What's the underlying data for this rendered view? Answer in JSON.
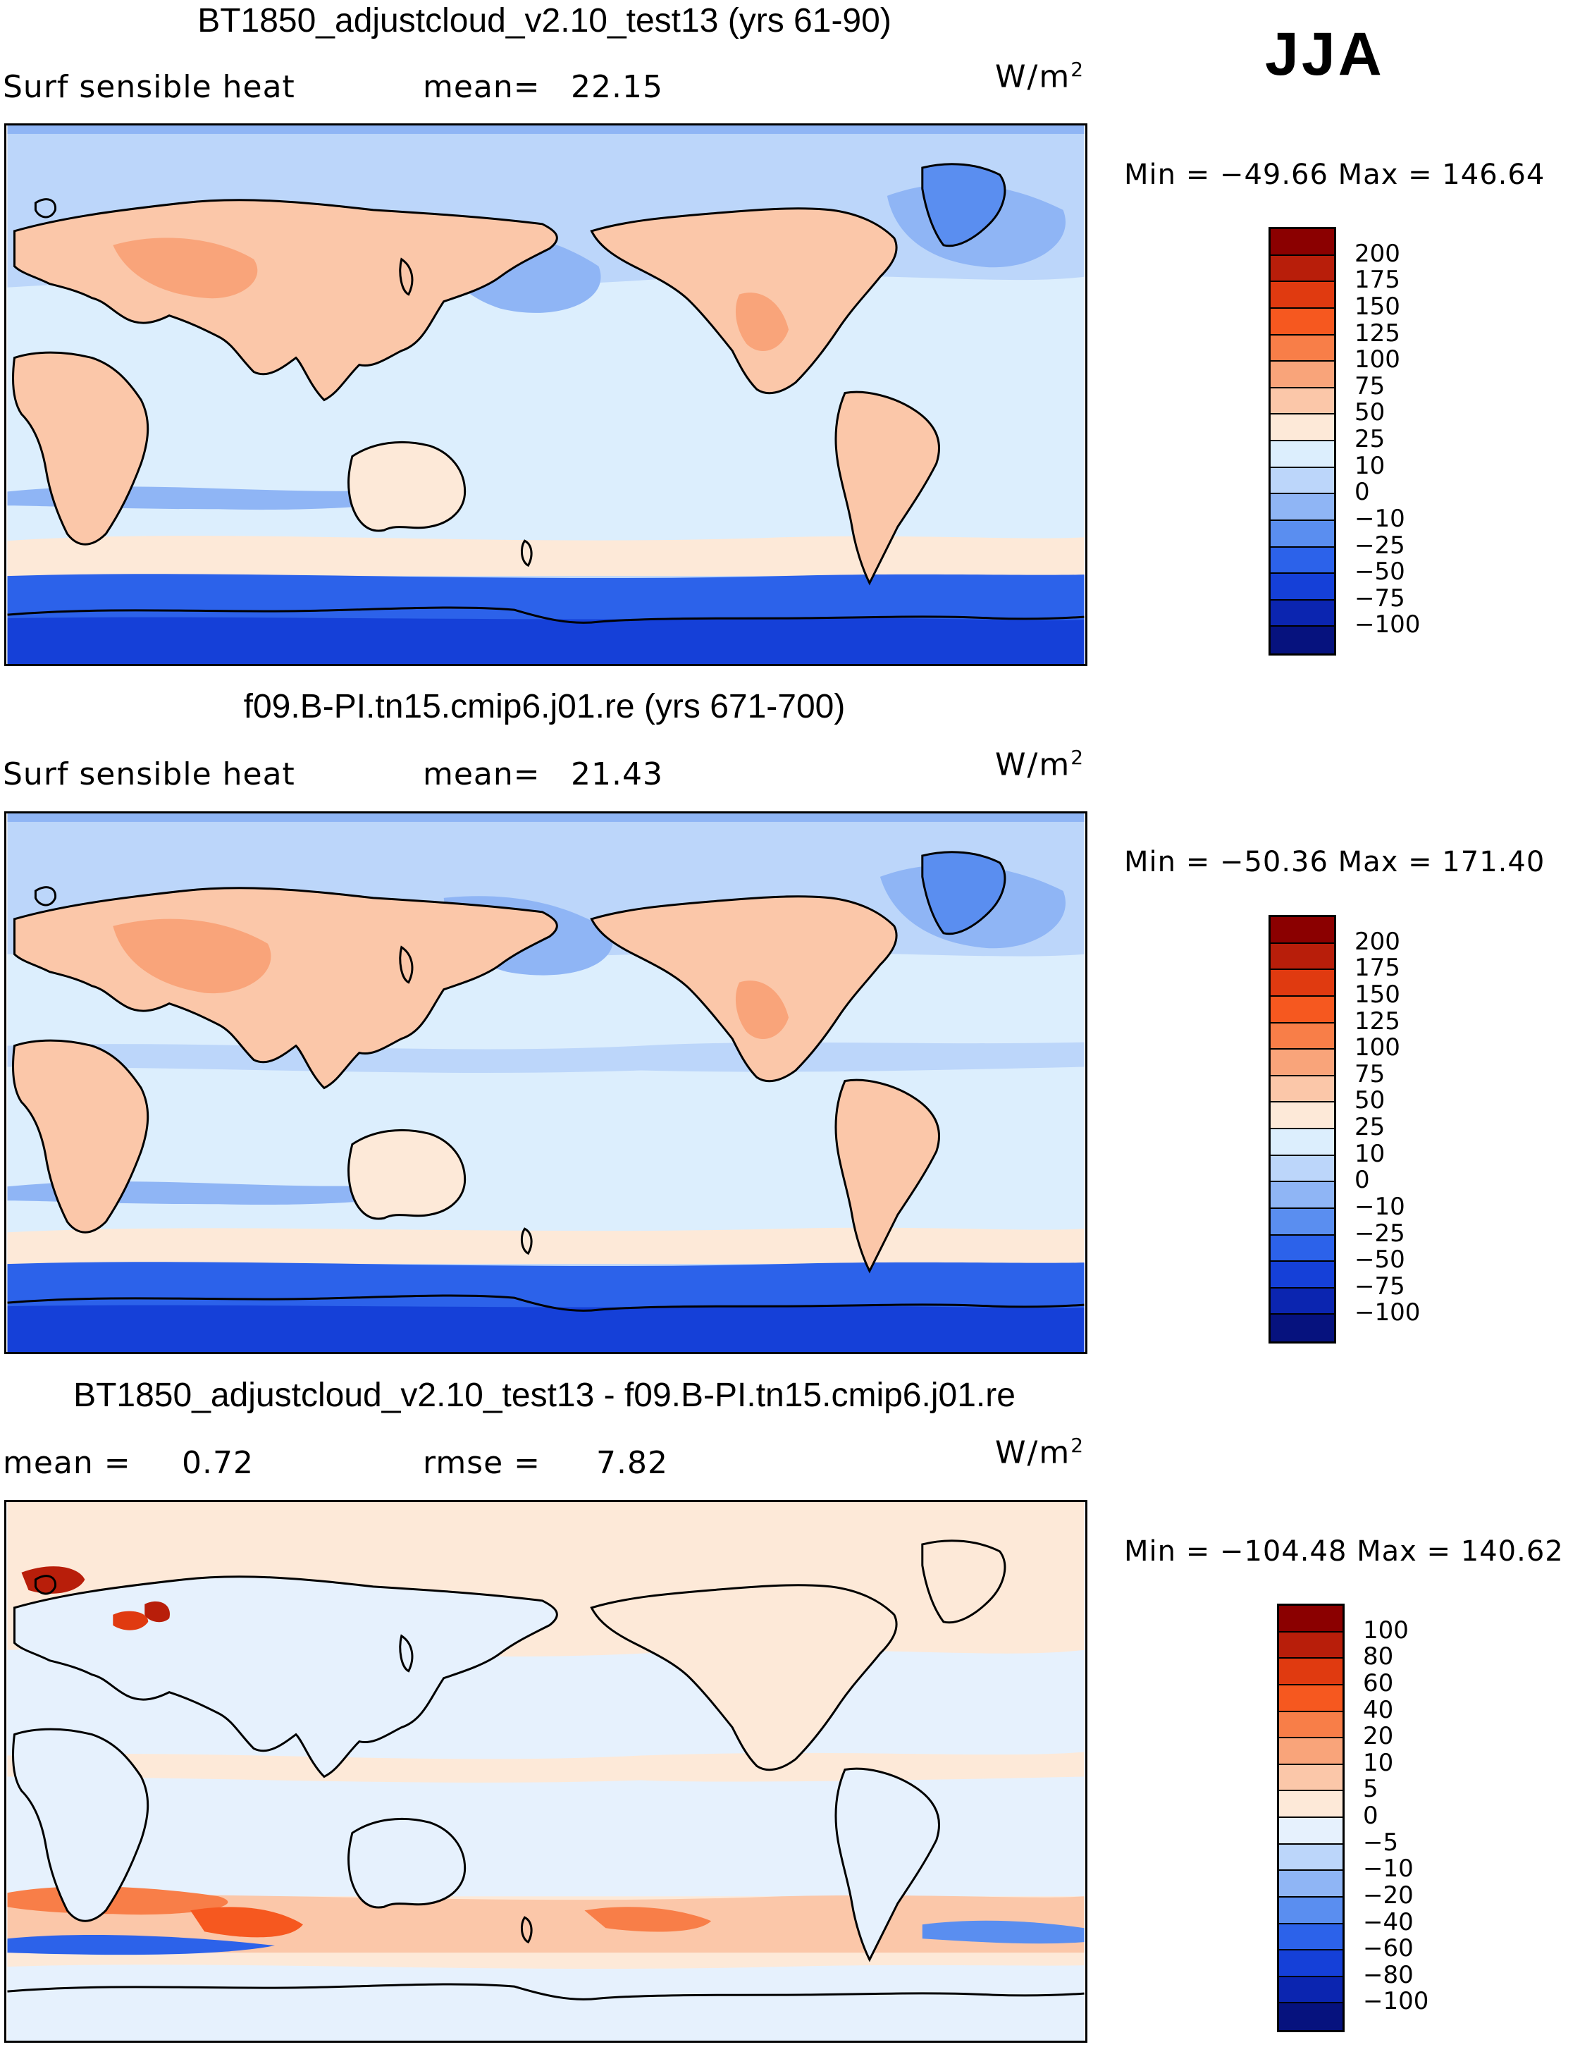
{
  "season": "JJA",
  "panels": [
    {
      "id": "panel-1",
      "title": "BT1850_adjustcloud_v2.10_test13 (yrs 61-90)",
      "left_label": "Surf  sensible  heat",
      "stat_label": "mean=",
      "stat_value": "22.15",
      "units_base": "W/m",
      "units_exp": "2",
      "min_label": "Min  =  −49.66  Max  =  146.64",
      "colorbar": {
        "labels": [
          "200",
          "175",
          "150",
          "125",
          "100",
          "75",
          "50",
          "25",
          "10",
          "0",
          "−10",
          "−25",
          "−50",
          "−75",
          "−100"
        ],
        "colors": [
          "#8b0000",
          "#b81e0a",
          "#e03a10",
          "#f6581f",
          "#f87e48",
          "#f9a47a",
          "#fbc7a9",
          "#fde9d8",
          "#dceefd",
          "#bcd6fa",
          "#8fb5f5",
          "#5a8ef0",
          "#2c62ea",
          "#1540d8",
          "#0b25b0",
          "#06127e"
        ]
      }
    },
    {
      "id": "panel-2",
      "title": "f09.B-PI.tn15.cmip6.j01.re (yrs 671-700)",
      "left_label": "Surf  sensible  heat",
      "stat_label": "mean=",
      "stat_value": "21.43",
      "units_base": "W/m",
      "units_exp": "2",
      "min_label": "Min  =  −50.36  Max  =  171.40",
      "colorbar": {
        "labels": [
          "200",
          "175",
          "150",
          "125",
          "100",
          "75",
          "50",
          "25",
          "10",
          "0",
          "−10",
          "−25",
          "−50",
          "−75",
          "−100"
        ],
        "colors": [
          "#8b0000",
          "#b81e0a",
          "#e03a10",
          "#f6581f",
          "#f87e48",
          "#f9a47a",
          "#fbc7a9",
          "#fde9d8",
          "#dceefd",
          "#bcd6fa",
          "#8fb5f5",
          "#5a8ef0",
          "#2c62ea",
          "#1540d8",
          "#0b25b0",
          "#06127e"
        ]
      }
    },
    {
      "id": "panel-3",
      "title": "BT1850_adjustcloud_v2.10_test13 - f09.B-PI.tn15.cmip6.j01.re",
      "left_label": "mean  =",
      "left_value": "0.72",
      "stat_label": "rmse  =",
      "stat_value": "7.82",
      "units_base": "W/m",
      "units_exp": "2",
      "min_label": "Min  =  −104.48  Max  =  140.62",
      "colorbar": {
        "labels": [
          "100",
          "80",
          "60",
          "40",
          "20",
          "10",
          "5",
          "0",
          "−5",
          "−10",
          "−20",
          "−40",
          "−60",
          "−80",
          "−100"
        ],
        "colors": [
          "#8b0000",
          "#b81e0a",
          "#e03a10",
          "#f6581f",
          "#f87e48",
          "#f9a47a",
          "#fbc7a9",
          "#fde9d8",
          "#e6f1fd",
          "#bcd6fa",
          "#8fb5f5",
          "#5a8ef0",
          "#2c62ea",
          "#1540d8",
          "#0b25b0",
          "#06127e"
        ]
      }
    }
  ]
}
